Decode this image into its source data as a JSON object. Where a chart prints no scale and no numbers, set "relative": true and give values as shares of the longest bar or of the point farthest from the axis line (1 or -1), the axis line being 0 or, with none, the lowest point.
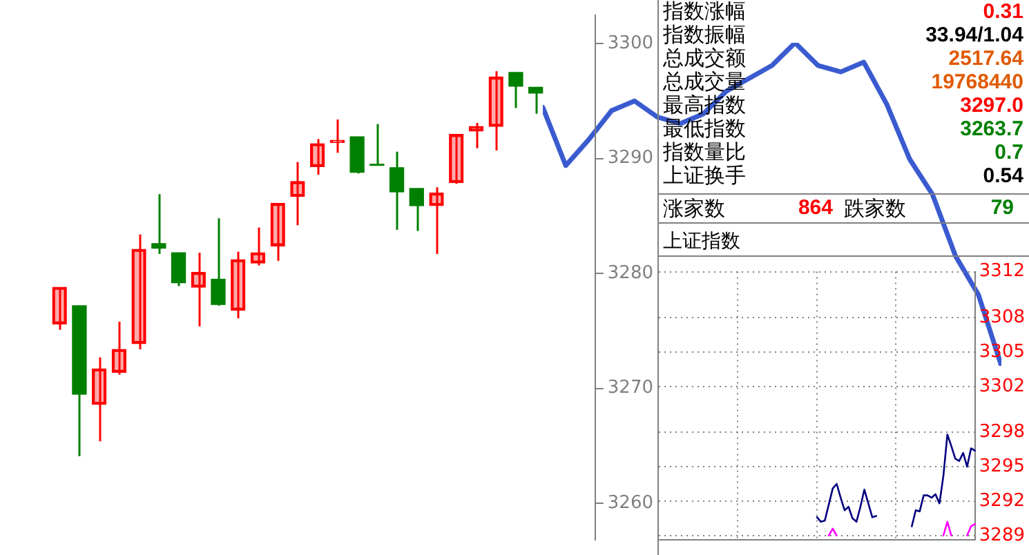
{
  "chart_data": [
    {
      "type": "candlestick",
      "categories": [
        null,
        null,
        null,
        null,
        null,
        null,
        null,
        null,
        null,
        null,
        null,
        null,
        null,
        null,
        null,
        null,
        null,
        null,
        null,
        null,
        null,
        null,
        null,
        null,
        null
      ],
      "ohlc": [
        [
          3275.6,
          3278.8,
          3275.1,
          3278.8
        ],
        [
          3277.2,
          3277.2,
          3264.1,
          3269.5
        ],
        [
          3268.6,
          3272.7,
          3265.4,
          3271.7
        ],
        [
          3271.4,
          3275.8,
          3271.2,
          3273.4
        ],
        [
          3273.9,
          3283.4,
          3273.4,
          3282.1
        ],
        [
          3282.6,
          3286.9,
          3281.7,
          3282.2
        ],
        [
          3281.8,
          3281.8,
          3278.9,
          3279.2
        ],
        [
          3278.8,
          3281.8,
          3275.4,
          3280.1
        ],
        [
          3279.5,
          3284.8,
          3277.2,
          3277.3
        ],
        [
          3276.8,
          3281.9,
          3276.1,
          3281.2
        ],
        [
          3280.9,
          3284.0,
          3280.7,
          3281.8
        ],
        [
          3282.4,
          3286.1,
          3281.1,
          3286.1
        ],
        [
          3286.7,
          3289.7,
          3284.2,
          3288.0
        ],
        [
          3289.3,
          3291.7,
          3288.6,
          3291.3
        ],
        [
          3291.4,
          3293.4,
          3290.5,
          3291.6
        ],
        [
          3291.9,
          3291.9,
          3288.7,
          3288.8
        ],
        [
          3289.5,
          3293.0,
          3289.4,
          3289.4
        ],
        [
          3289.2,
          3290.6,
          3283.8,
          3287.1
        ],
        [
          3287.4,
          3287.4,
          3283.7,
          3285.9
        ],
        [
          3285.9,
          3287.5,
          3281.7,
          3287.0
        ],
        [
          3287.9,
          3292.1,
          3287.8,
          3292.1
        ],
        [
          3292.4,
          3293.1,
          3290.9,
          3292.8
        ],
        [
          3292.8,
          3297.6,
          3290.7,
          3297.1
        ],
        [
          3297.5,
          3297.5,
          3294.4,
          3296.3
        ],
        [
          3296.2,
          3296.2,
          3293.9,
          3295.7
        ]
      ],
      "colors": [
        "#ff0000",
        "#008000",
        "#ff0000",
        "#ff0000",
        "#ff0000",
        "#008000",
        "#008000",
        "#ff0000",
        "#008000",
        "#ff0000",
        "#ff0000",
        "#ff0000",
        "#ff0000",
        "#ff0000",
        "#ff0000",
        "#008000",
        "#008000",
        "#008000",
        "#008000",
        "#ff0000",
        "#ff0000",
        "#ff0000",
        "#ff0000",
        "#008000",
        "#008000"
      ],
      "ylim": [
        3256.8,
        3302.5
      ],
      "yticks": [
        3260,
        3270,
        3280,
        3290,
        3300
      ],
      "tick_labels": "y"
    },
    {
      "type": "other",
      "annotations": [
        "指数涨幅",
        "0.31",
        "指数振幅",
        "33.94/1.04",
        "总成交额",
        "2517.64",
        "总成交量",
        "19768440",
        "最高指数",
        "3297.0",
        "最低指数",
        "3263.7",
        "指数量比",
        "0.7",
        "上证换手",
        "0.54",
        "涨家数",
        "864",
        "跌家数",
        "79"
      ],
      "colors": [
        "#000000",
        "#ff0000",
        "#000000",
        "#000000",
        "#000000",
        "#e05a00",
        "#000000",
        "#e05a00",
        "#000000",
        "#ff0000",
        "#000000",
        "#008000",
        "#000000",
        "#008000",
        "#000000",
        "#000000",
        "#000000",
        "#ff0000",
        "#000000",
        "#008000"
      ]
    },
    {
      "type": "line",
      "title": "上证指数",
      "categories": [
        null,
        null,
        null,
        null,
        null,
        null,
        null,
        null,
        null,
        null,
        null,
        null,
        null,
        null,
        null,
        null,
        null,
        null,
        null,
        null,
        null,
        null,
        null,
        null,
        null,
        null,
        null,
        null,
        null,
        null,
        null,
        null,
        null,
        null,
        null,
        null,
        null,
        null,
        null,
        null,
        null,
        null,
        null,
        null,
        null,
        null,
        null,
        null,
        null,
        null,
        null,
        null,
        null,
        null,
        null,
        null,
        null,
        null,
        null,
        null,
        null,
        null,
        null,
        null,
        null,
        null,
        null,
        null,
        null,
        null,
        null,
        null,
        null,
        null,
        null,
        null,
        null,
        null,
        null,
        null,
        null
      ],
      "ylim": [
        3288.6,
        3312
      ],
      "yticks": [
        3312,
        3308,
        3305,
        3302,
        3298,
        3295,
        3292,
        3289
      ],
      "grid": true,
      "tick_labels": "y",
      "marker": "none",
      "series": [
        {
          "color": "#000080",
          "values": [
            null,
            null,
            null,
            null,
            null,
            null,
            null,
            null,
            null,
            null,
            null,
            null,
            null,
            null,
            null,
            null,
            null,
            null,
            null,
            null,
            null,
            null,
            null,
            null,
            null,
            null,
            null,
            null,
            null,
            null,
            null,
            null,
            null,
            null,
            null,
            null,
            null,
            null,
            null,
            null,
            3290.6,
            3290.2,
            3290.3,
            3291.7,
            3293.1,
            3293.5,
            3292.3,
            3291.2,
            3291.5,
            3290.5,
            3290.2,
            3291.5,
            3293.0,
            3291.8,
            3290.6,
            3290.7,
            null,
            null,
            null,
            null,
            null,
            null,
            null,
            null,
            3289.8,
            3291.2,
            3291.1,
            3292.5,
            3292.5,
            3292.3,
            3292.6,
            3291.8,
            3294.2,
            3297.8,
            3296.8,
            3295.7,
            3295.5,
            3296.2,
            3295.0,
            3296.6,
            3296.4
          ]
        },
        {
          "color": "#ff00ff",
          "values": [
            null,
            null,
            null,
            null,
            null,
            null,
            null,
            null,
            null,
            null,
            null,
            null,
            null,
            null,
            null,
            null,
            null,
            null,
            null,
            null,
            null,
            null,
            null,
            null,
            null,
            null,
            null,
            null,
            null,
            null,
            null,
            null,
            null,
            null,
            null,
            null,
            null,
            null,
            null,
            null,
            null,
            null,
            null,
            3289.0,
            3289.6,
            3289.0,
            null,
            null,
            null,
            null,
            null,
            null,
            null,
            null,
            null,
            null,
            null,
            null,
            null,
            null,
            null,
            null,
            null,
            null,
            null,
            null,
            null,
            null,
            null,
            null,
            null,
            null,
            3289.0,
            3290.2,
            3289.0,
            null,
            null,
            null,
            3289.0,
            3289.8,
            3290.0
          ]
        }
      ]
    },
    {
      "type": "line",
      "relative": true,
      "tick_labels": false,
      "marker": "none",
      "categories": [
        null,
        null,
        null,
        null,
        null,
        null,
        null,
        null,
        null,
        null,
        null,
        null,
        null,
        null,
        null,
        null,
        null,
        null,
        null,
        null,
        null
      ],
      "series": [
        {
          "color": "#3a5bd0",
          "values": [
            0.8,
            0.62,
            0.7,
            0.79,
            0.82,
            0.77,
            0.75,
            0.78,
            0.85,
            0.89,
            0.93,
            1.0,
            0.93,
            0.91,
            0.94,
            0.81,
            0.64,
            0.53,
            0.34,
            0.22,
            0
          ]
        }
      ]
    }
  ]
}
